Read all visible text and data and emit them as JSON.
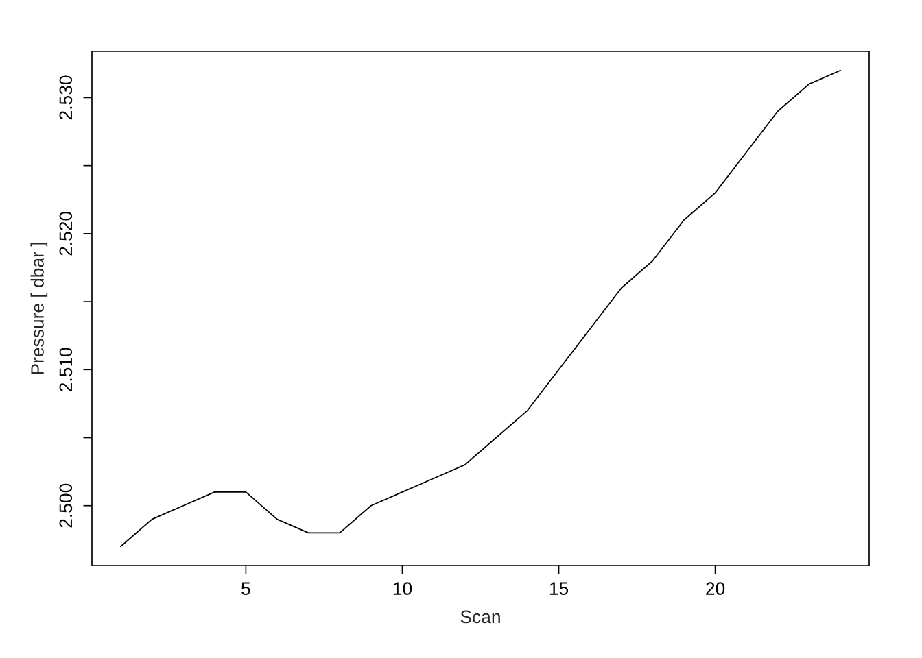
{
  "chart_data": {
    "type": "line",
    "xlabel": "Scan",
    "ylabel": "Pressure [ dbar ]",
    "x": [
      1,
      2,
      3,
      4,
      5,
      6,
      7,
      8,
      9,
      10,
      11,
      12,
      13,
      14,
      15,
      16,
      17,
      18,
      19,
      20,
      21,
      22,
      23,
      24
    ],
    "series": [
      {
        "color": "#000000",
        "values": [
          2.497,
          2.499,
          2.5,
          2.501,
          2.501,
          2.499,
          2.498,
          2.498,
          2.5,
          2.501,
          2.502,
          2.503,
          2.505,
          2.507,
          2.51,
          2.513,
          2.516,
          2.518,
          2.521,
          2.523,
          2.526,
          2.529,
          2.531,
          2.532
        ]
      }
    ],
    "xlim": [
      0.08,
      24.92
    ],
    "ylim": [
      2.4956,
      2.5334
    ],
    "xticks": [
      5,
      10,
      15,
      20
    ],
    "yticks": [
      {
        "value": 2.5,
        "label": "2.500"
      },
      {
        "value": 2.505,
        "label": null
      },
      {
        "value": 2.51,
        "label": "2.510"
      },
      {
        "value": 2.515,
        "label": null
      },
      {
        "value": 2.52,
        "label": "2.520"
      },
      {
        "value": 2.525,
        "label": null
      },
      {
        "value": 2.53,
        "label": "2.530"
      }
    ],
    "grid": false,
    "legend": false,
    "marker": "none",
    "line_style": "solid"
  }
}
